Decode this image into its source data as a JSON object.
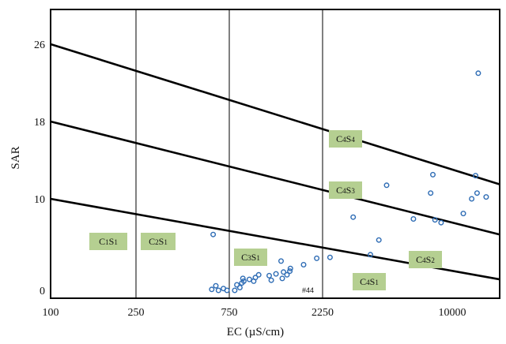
{
  "chart_data": {
    "type": "scatter",
    "title": "",
    "xlabel": "EC (µS/cm)",
    "ylabel": "SAR",
    "x_ticks": [
      "100",
      "250",
      "750",
      "2250",
      "10000"
    ],
    "y_ticks": [
      "0",
      "10",
      "18",
      "26"
    ],
    "ylim": [
      0,
      30
    ],
    "zone_labels": [
      {
        "c": "1",
        "s": "1"
      },
      {
        "c": "2",
        "s": "1"
      },
      {
        "c": "3",
        "s": "1"
      },
      {
        "c": "4",
        "s": "1"
      },
      {
        "c": "4",
        "s": "2"
      },
      {
        "c": "4",
        "s": "3"
      },
      {
        "c": "4",
        "s": "4"
      }
    ],
    "annotation": "#44",
    "colors": {
      "points": "#2f6db5",
      "zone_fill": "#b5cf91",
      "lines": "#000000"
    },
    "points": [
      {
        "x": 620,
        "y": 6.1
      },
      {
        "x": 610,
        "y": 0.1
      },
      {
        "x": 640,
        "y": 0.5
      },
      {
        "x": 660,
        "y": 0.0
      },
      {
        "x": 700,
        "y": 0.2
      },
      {
        "x": 730,
        "y": 0.0
      },
      {
        "x": 800,
        "y": 0.0
      },
      {
        "x": 820,
        "y": 0.6
      },
      {
        "x": 850,
        "y": 0.3
      },
      {
        "x": 870,
        "y": 0.8
      },
      {
        "x": 880,
        "y": 1.3
      },
      {
        "x": 890,
        "y": 1.0
      },
      {
        "x": 950,
        "y": 1.2
      },
      {
        "x": 1000,
        "y": 1.0
      },
      {
        "x": 1020,
        "y": 1.4
      },
      {
        "x": 1060,
        "y": 1.7
      },
      {
        "x": 1200,
        "y": 1.6
      },
      {
        "x": 1230,
        "y": 1.1
      },
      {
        "x": 1300,
        "y": 1.8
      },
      {
        "x": 1380,
        "y": 3.2
      },
      {
        "x": 1400,
        "y": 1.3
      },
      {
        "x": 1420,
        "y": 2.0
      },
      {
        "x": 1480,
        "y": 1.7
      },
      {
        "x": 1530,
        "y": 2.1
      },
      {
        "x": 1540,
        "y": 2.4
      },
      {
        "x": 1800,
        "y": 2.8
      },
      {
        "x": 2100,
        "y": 3.5
      },
      {
        "x": 2450,
        "y": 3.6
      },
      {
        "x": 3200,
        "y": 8.0
      },
      {
        "x": 3900,
        "y": 3.9
      },
      {
        "x": 4300,
        "y": 5.5
      },
      {
        "x": 4700,
        "y": 11.4
      },
      {
        "x": 6400,
        "y": 7.8
      },
      {
        "x": 7800,
        "y": 10.6
      },
      {
        "x": 8000,
        "y": 12.5
      },
      {
        "x": 8200,
        "y": 7.7
      },
      {
        "x": 8800,
        "y": 7.4
      },
      {
        "x": 12500,
        "y": 8.4
      },
      {
        "x": 14800,
        "y": 10.0
      },
      {
        "x": 16000,
        "y": 12.4
      },
      {
        "x": 16500,
        "y": 10.6
      },
      {
        "x": 16900,
        "y": 23.0
      },
      {
        "x": 19800,
        "y": 10.2
      }
    ]
  }
}
